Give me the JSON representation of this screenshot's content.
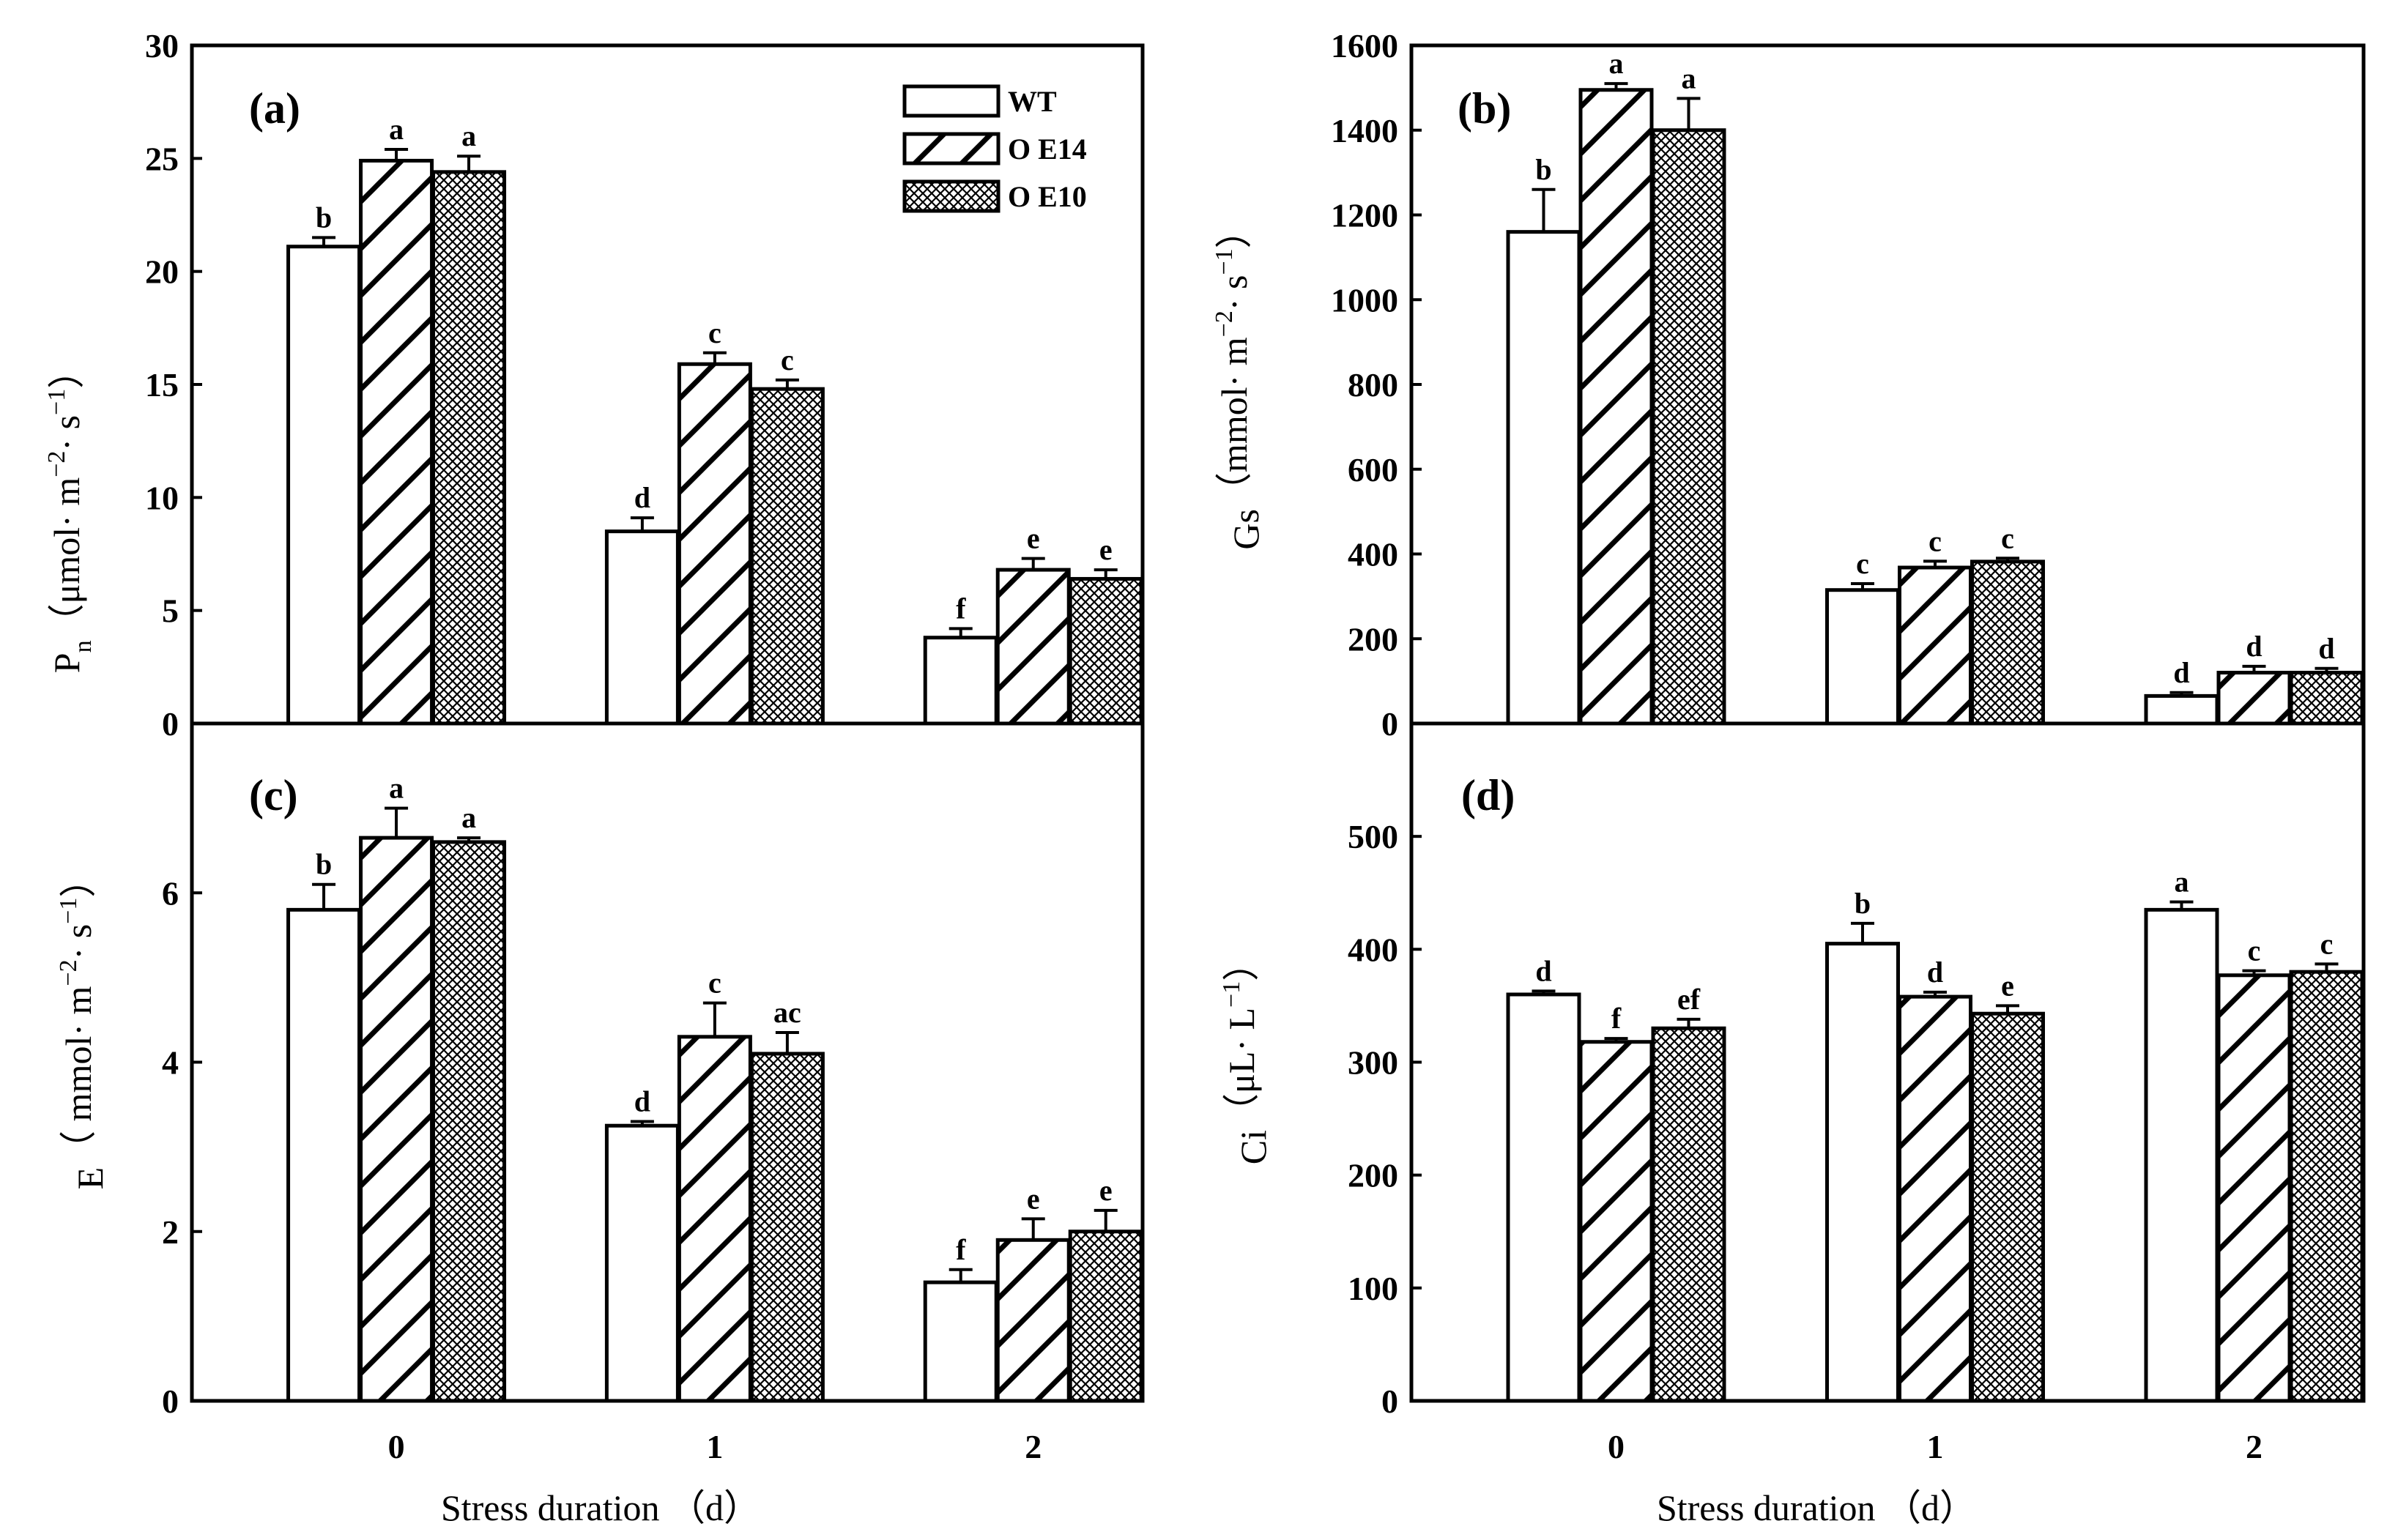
{
  "figure": {
    "series_names": [
      "WT",
      "O E14",
      "O E10"
    ],
    "colors": {
      "bar_stroke": "#000000",
      "fill": "#ffffff"
    }
  },
  "chart_data": [
    {
      "type": "bar",
      "panel_label": "(a)",
      "categories": [
        "0",
        "1",
        "2"
      ],
      "xlabel": "",
      "ylabel": "Pn (μmol· m−2· s−1)",
      "ylabel_parts": {
        "main": "P",
        "sub": "n",
        "text": "（μmol· m",
        "exp1": "−2",
        "mid": "· s",
        "exp2": "−1",
        "end": "）"
      },
      "ylim": [
        0,
        30
      ],
      "yticks": [
        0,
        5,
        10,
        15,
        20,
        25,
        30
      ],
      "series": [
        {
          "name": "WT",
          "values": [
            21.1,
            8.5,
            3.8
          ],
          "errors": [
            0.4,
            0.6,
            0.4
          ],
          "letters": [
            "b",
            "d",
            "f"
          ]
        },
        {
          "name": "O E14",
          "values": [
            24.9,
            15.9,
            6.8
          ],
          "errors": [
            0.5,
            0.5,
            0.5
          ],
          "letters": [
            "a",
            "c",
            "e"
          ]
        },
        {
          "name": "O E10",
          "values": [
            24.4,
            14.8,
            6.4
          ],
          "errors": [
            0.7,
            0.4,
            0.4
          ],
          "letters": [
            "a",
            "c",
            "e"
          ]
        }
      ],
      "legend": [
        "WT",
        "O E14",
        "O E10"
      ]
    },
    {
      "type": "bar",
      "panel_label": "(b)",
      "categories": [
        "0",
        "1",
        "2"
      ],
      "xlabel": "",
      "ylabel": "Gs (mmol· m−2· s−1)",
      "ylabel_parts": {
        "main": "Gs",
        "sub": "",
        "text": "（mmol· m",
        "exp1": "−2",
        "mid": "· s",
        "exp2": "−1",
        "end": "）"
      },
      "ylim": [
        0,
        1600
      ],
      "yticks": [
        0,
        200,
        400,
        600,
        800,
        1000,
        1200,
        1400,
        1600
      ],
      "series": [
        {
          "name": "WT",
          "values": [
            1160,
            315,
            65
          ],
          "errors": [
            100,
            15,
            8
          ],
          "letters": [
            "b",
            "c",
            "d"
          ]
        },
        {
          "name": "O E14",
          "values": [
            1495,
            368,
            120
          ],
          "errors": [
            15,
            15,
            15
          ],
          "letters": [
            "a",
            "c",
            "d"
          ]
        },
        {
          "name": "O E10",
          "values": [
            1400,
            382,
            120
          ],
          "errors": [
            75,
            8,
            10
          ],
          "letters": [
            "a",
            "c",
            "d"
          ]
        }
      ]
    },
    {
      "type": "bar",
      "panel_label": "(c)",
      "categories": [
        "0",
        "1",
        "2"
      ],
      "xlabel": "Stress duration （d）",
      "ylabel": "E（ mmol· m−2· s−1）",
      "ylabel_parts": {
        "main": "E",
        "sub": "",
        "text": "（ mmol· m",
        "exp1": "−2",
        "mid": "· s",
        "exp2": "−1",
        "end": "）"
      },
      "ylim": [
        0,
        8
      ],
      "yticks": [
        0,
        2,
        4,
        6
      ],
      "series": [
        {
          "name": "WT",
          "values": [
            5.8,
            3.25,
            1.4
          ],
          "errors": [
            0.3,
            0.05,
            0.15
          ],
          "letters": [
            "b",
            "d",
            "f"
          ]
        },
        {
          "name": "O E14",
          "values": [
            6.65,
            4.3,
            1.9
          ],
          "errors": [
            0.35,
            0.4,
            0.25
          ],
          "letters": [
            "a",
            "c",
            "e"
          ]
        },
        {
          "name": "O E10",
          "values": [
            6.6,
            4.1,
            2.0
          ],
          "errors": [
            0.05,
            0.25,
            0.25
          ],
          "letters": [
            "a",
            "ac",
            "e"
          ]
        }
      ]
    },
    {
      "type": "bar",
      "panel_label": "(d)",
      "categories": [
        "0",
        "1",
        "2"
      ],
      "xlabel": "Stress duration （d）",
      "ylabel": "Ci (μL· L−1)",
      "ylabel_parts": {
        "main": "Ci",
        "sub": "",
        "text": "（μL· L",
        "exp1": "−1",
        "mid": "",
        "exp2": "",
        "end": "）"
      },
      "ylim": [
        0,
        600
      ],
      "yticks": [
        0,
        100,
        200,
        300,
        400,
        500
      ],
      "series": [
        {
          "name": "WT",
          "values": [
            360,
            405,
            435
          ],
          "errors": [
            3,
            18,
            7
          ],
          "letters": [
            "d",
            "b",
            "a"
          ]
        },
        {
          "name": "O E14",
          "values": [
            318,
            358,
            377
          ],
          "errors": [
            3,
            4,
            4
          ],
          "letters": [
            "f",
            "d",
            "c"
          ]
        },
        {
          "name": "O E10",
          "values": [
            330,
            343,
            380
          ],
          "errors": [
            8,
            7,
            7
          ],
          "letters": [
            "ef",
            "e",
            "c"
          ]
        }
      ]
    }
  ]
}
